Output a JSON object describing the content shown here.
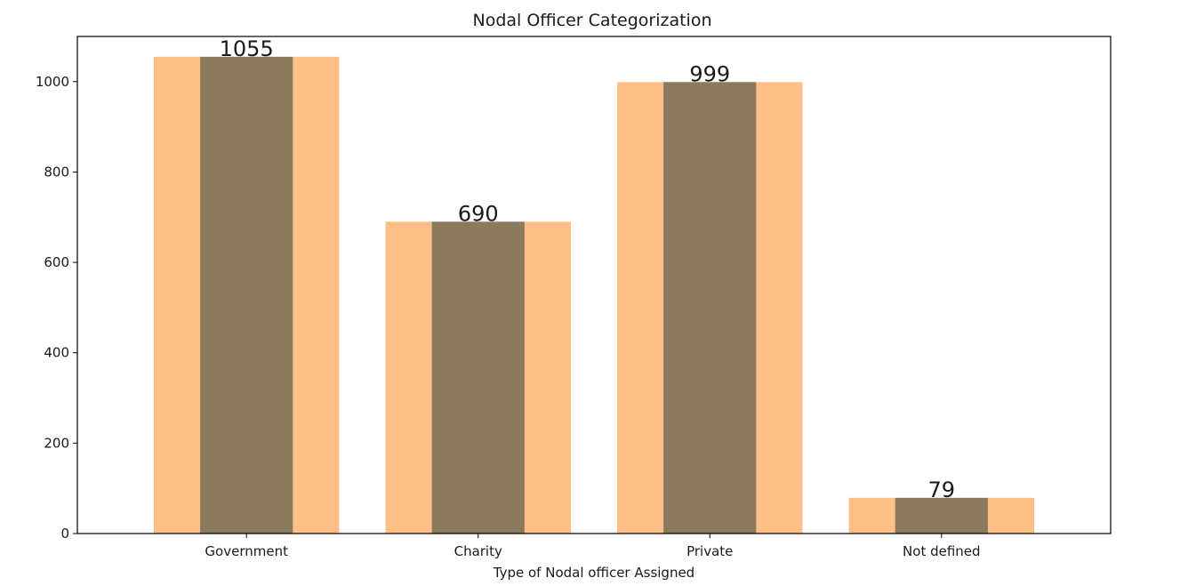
{
  "chart_data": {
    "type": "bar",
    "title": "Nodal Officer Categorization",
    "xlabel": "Type of Nodal officer Assigned",
    "ylabel": "",
    "categories": [
      "Government",
      "Charity",
      "Private",
      "Not defined"
    ],
    "values": [
      1055,
      690,
      999,
      79
    ],
    "data_labels": [
      "1055",
      "690",
      "999",
      "79"
    ],
    "ylim": [
      0,
      1100
    ],
    "yticks": [
      0,
      200,
      400,
      600,
      800,
      1000
    ],
    "ytick_labels": [
      "0",
      "200",
      "400",
      "600",
      "800",
      "1000"
    ],
    "grid": false,
    "legend": "none",
    "colors": {
      "outer_bar": "#FFBF87",
      "inner_bar": "#8C7A5E",
      "axis": "#000000",
      "text": "#1a1a1a"
    }
  }
}
